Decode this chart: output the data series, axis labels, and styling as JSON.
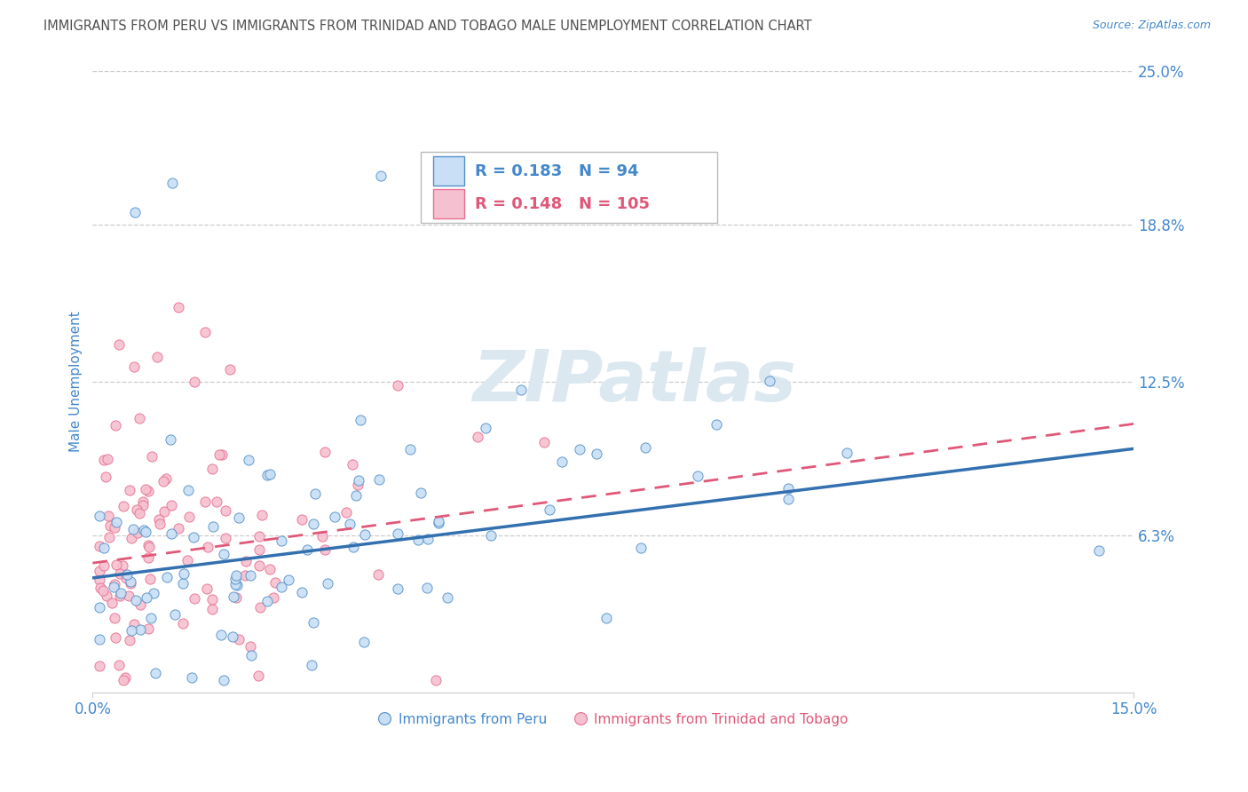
{
  "title": "IMMIGRANTS FROM PERU VS IMMIGRANTS FROM TRINIDAD AND TOBAGO MALE UNEMPLOYMENT CORRELATION CHART",
  "source": "Source: ZipAtlas.com",
  "ylabel": "Male Unemployment",
  "x_min": 0.0,
  "x_max": 0.15,
  "y_min": 0.0,
  "y_max": 0.25,
  "y_tick_vals": [
    0.063,
    0.125,
    0.188,
    0.25
  ],
  "y_tick_labels": [
    "6.3%",
    "12.5%",
    "18.8%",
    "25.0%"
  ],
  "series1_label": "Immigrants from Peru",
  "series1_R": "0.183",
  "series1_N": "94",
  "series1_fill": "#c8dff5",
  "series1_edge": "#5590c8",
  "series1_line": "#3370b0",
  "series2_label": "Immigrants from Trinidad and Tobago",
  "series2_R": "0.148",
  "series2_N": "105",
  "series2_fill": "#f5c0d0",
  "series2_edge": "#e87090",
  "series2_line": "#e05878",
  "watermark": "ZIPatlas",
  "watermark_color": "#dce8f0",
  "background_color": "#ffffff",
  "grid_color": "#cccccc",
  "title_color": "#505050",
  "axis_color": "#4488cc",
  "peru_trend_start": 0.046,
  "peru_trend_end": 0.098,
  "tt_trend_start": 0.052,
  "tt_trend_end": 0.108
}
